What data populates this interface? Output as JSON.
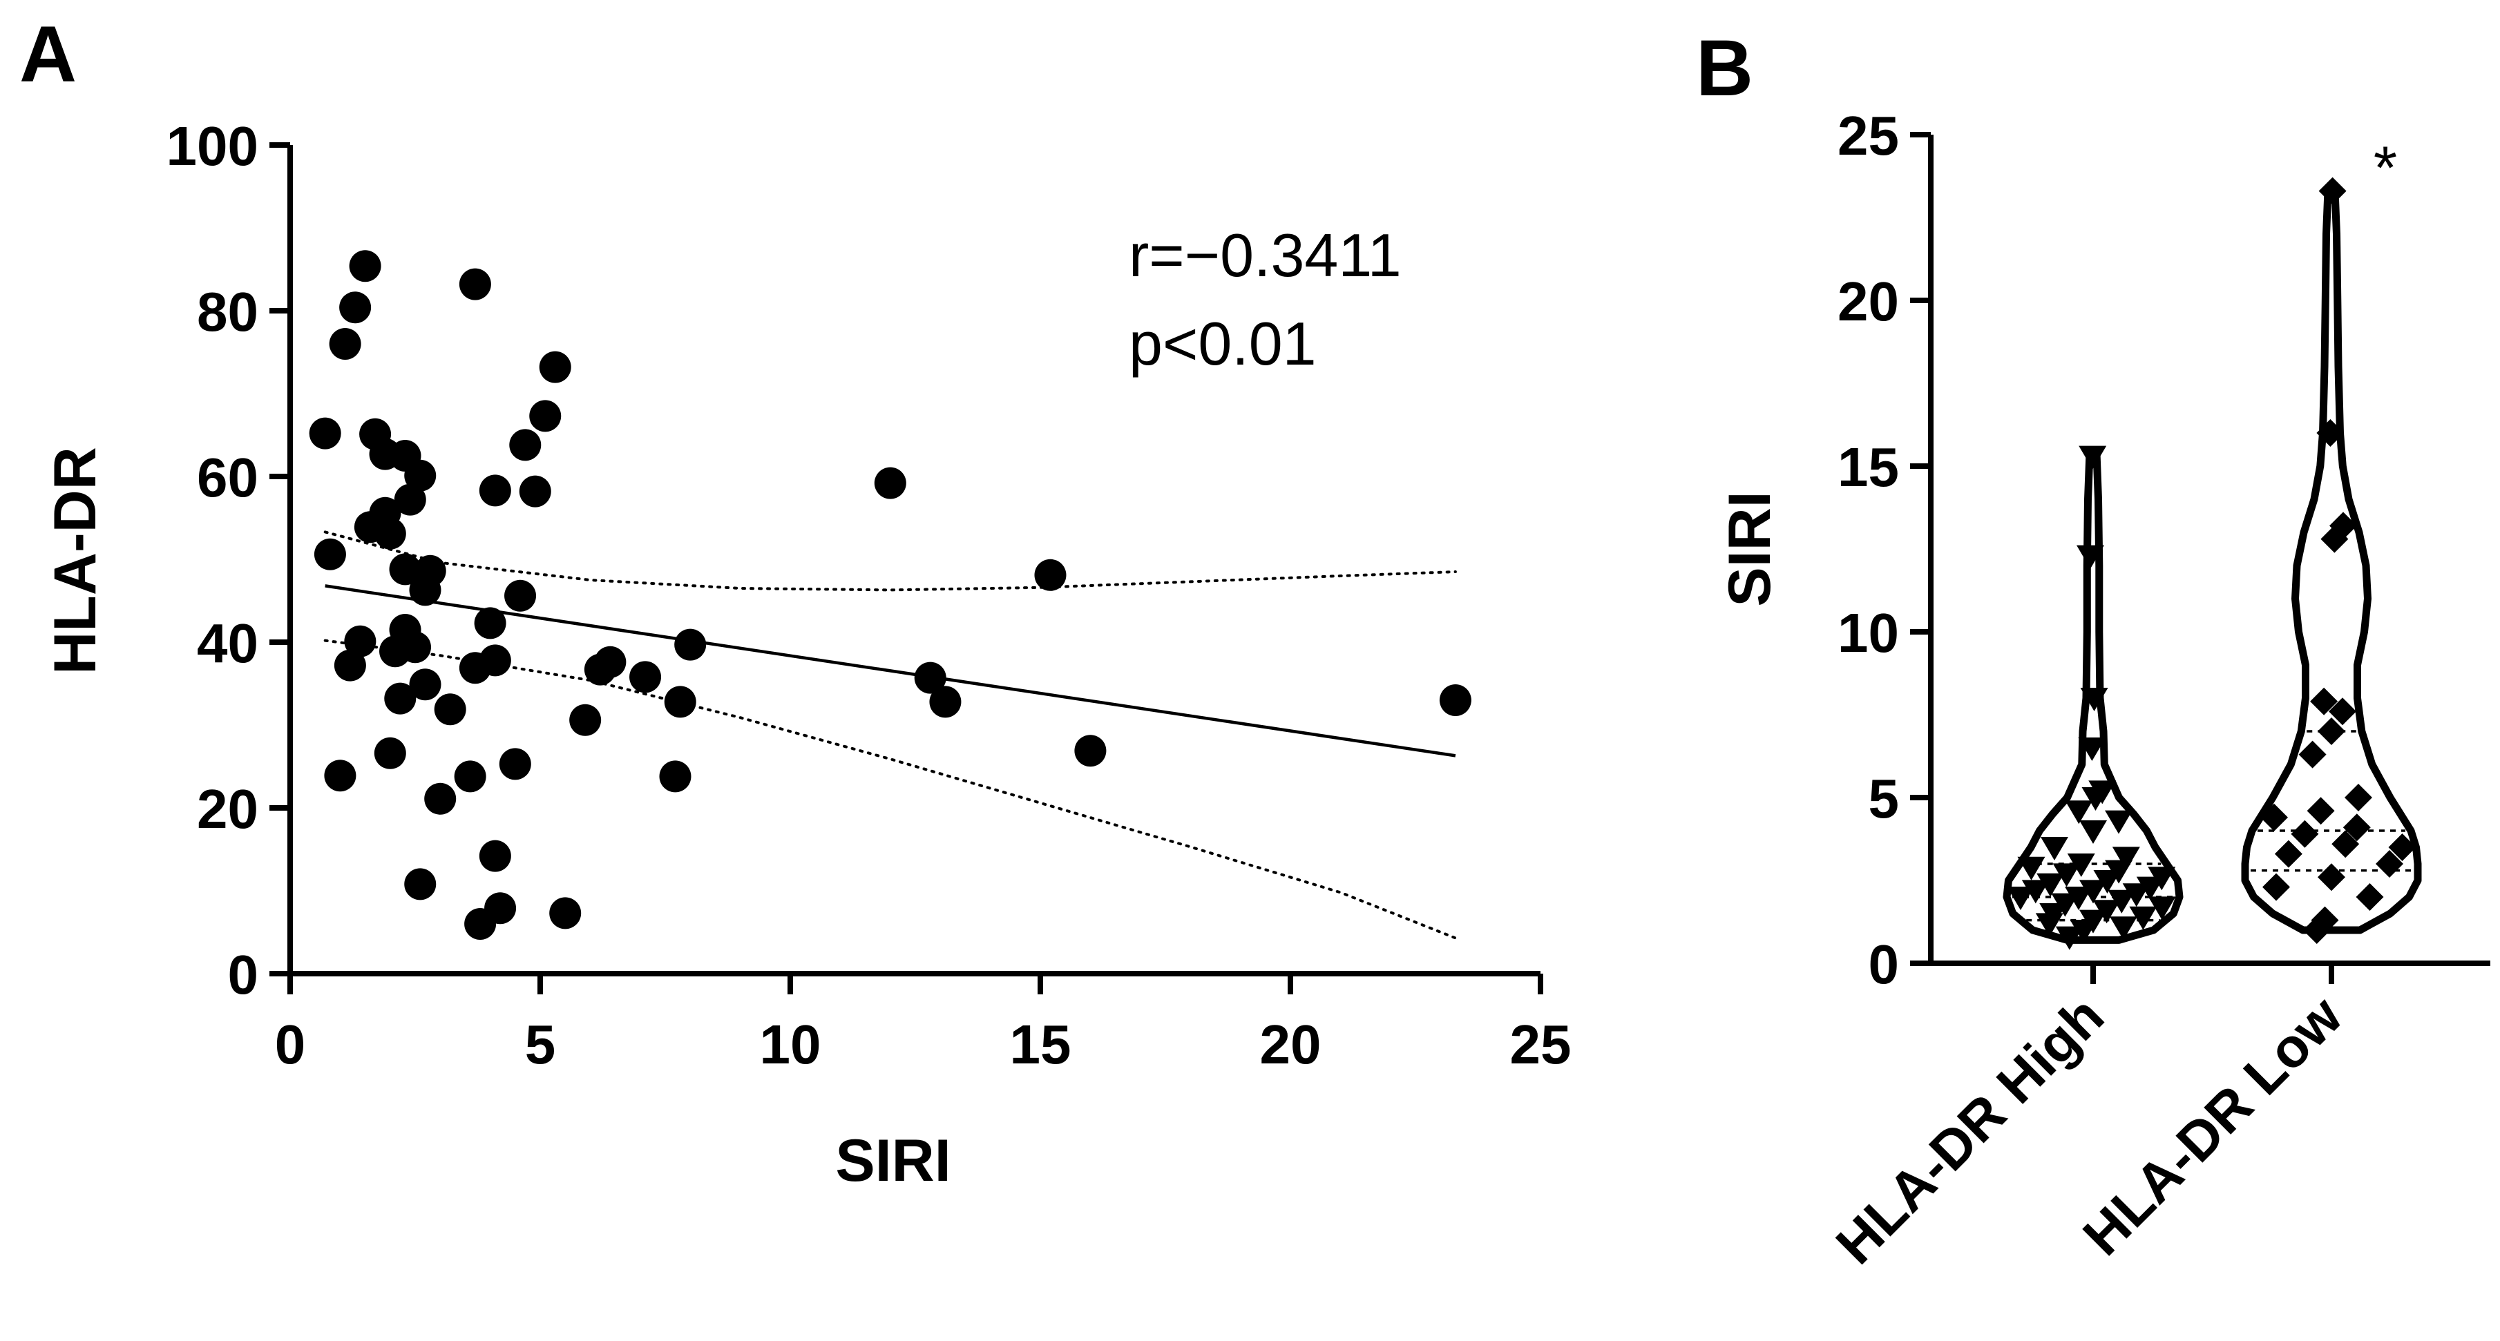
{
  "chart_data": [
    {
      "panel": "A",
      "type": "scatter",
      "xlabel": "SIRI",
      "ylabel": "HLA-DR",
      "xlim": [
        0,
        25
      ],
      "ylim": [
        0,
        100
      ],
      "xticks": [
        "0",
        "5",
        "10",
        "15",
        "20",
        "25"
      ],
      "yticks": [
        "0",
        "20",
        "40",
        "60",
        "80",
        "100"
      ],
      "annotation_r": "r=−0.3411",
      "annotation_p": "p<0.01",
      "points": [
        [
          0.7,
          65.2
        ],
        [
          0.8,
          50.6
        ],
        [
          1.0,
          23.9
        ],
        [
          1.1,
          76.0
        ],
        [
          1.2,
          37.2
        ],
        [
          1.3,
          80.4
        ],
        [
          1.4,
          40.1
        ],
        [
          1.5,
          85.4
        ],
        [
          1.6,
          53.9
        ],
        [
          1.7,
          65.1
        ],
        [
          1.9,
          62.7
        ],
        [
          1.9,
          55.6
        ],
        [
          2.0,
          26.6
        ],
        [
          2.0,
          53.1
        ],
        [
          2.1,
          38.9
        ],
        [
          2.2,
          33.2
        ],
        [
          2.3,
          62.5
        ],
        [
          2.3,
          48.8
        ],
        [
          2.3,
          41.5
        ],
        [
          2.4,
          57.2
        ],
        [
          2.5,
          39.4
        ],
        [
          2.6,
          60.1
        ],
        [
          2.6,
          10.8
        ],
        [
          2.7,
          46.3
        ],
        [
          2.7,
          34.9
        ],
        [
          2.8,
          48.6
        ],
        [
          3.0,
          21.1
        ],
        [
          3.2,
          31.9
        ],
        [
          3.6,
          23.8
        ],
        [
          3.7,
          36.9
        ],
        [
          3.7,
          83.2
        ],
        [
          3.8,
          6.0
        ],
        [
          4.0,
          42.3
        ],
        [
          4.1,
          58.3
        ],
        [
          4.1,
          37.8
        ],
        [
          4.1,
          14.2
        ],
        [
          4.2,
          7.9
        ],
        [
          4.5,
          25.3
        ],
        [
          4.6,
          45.6
        ],
        [
          4.7,
          63.8
        ],
        [
          4.9,
          58.2
        ],
        [
          5.1,
          67.3
        ],
        [
          5.3,
          73.2
        ],
        [
          5.5,
          7.3
        ],
        [
          5.9,
          30.6
        ],
        [
          6.2,
          36.7
        ],
        [
          6.4,
          37.6
        ],
        [
          7.1,
          35.8
        ],
        [
          7.7,
          23.8
        ],
        [
          7.8,
          32.8
        ],
        [
          8.0,
          39.7
        ],
        [
          12.0,
          59.2
        ],
        [
          12.8,
          35.7
        ],
        [
          13.1,
          32.8
        ],
        [
          15.2,
          48.1
        ],
        [
          16.0,
          26.9
        ],
        [
          23.3,
          33.0
        ]
      ],
      "regression": {
        "x": [
          0.7,
          23.3
        ],
        "y": [
          46.8,
          26.3
        ]
      },
      "ci_upper": {
        "x": [
          0.7,
          3.0,
          6.0,
          9.0,
          12.0,
          15.0,
          18.0,
          21.0,
          23.3
        ],
        "y": [
          53.3,
          49.6,
          47.5,
          46.5,
          46.3,
          46.6,
          47.3,
          48.0,
          48.5
        ]
      },
      "ci_lower": {
        "x": [
          0.7,
          3.0,
          6.0,
          9.0,
          12.0,
          15.0,
          18.0,
          21.0,
          23.3
        ],
        "y": [
          40.2,
          38.4,
          35.4,
          30.9,
          25.9,
          20.6,
          15.3,
          9.8,
          4.3
        ]
      }
    },
    {
      "panel": "B",
      "type": "violin",
      "ylabel": "SIRI",
      "ylim": [
        0,
        25
      ],
      "yticks": [
        "0",
        "5",
        "10",
        "15",
        "20",
        "25"
      ],
      "categories": [
        "HLA-DR High",
        "HLA-DR Low"
      ],
      "significance": "*",
      "series": [
        {
          "name": "HLA-DR High",
          "marker": "triangle-down",
          "median": 2.0,
          "q1": 1.3,
          "q3": 3.0,
          "density": {
            "y": [
              0.7,
              1.0,
              1.5,
              2.0,
              2.5,
              3.0,
              3.5,
              4.0,
              4.5,
              5.0,
              6.0,
              7.0,
              8.0,
              10.0,
              12.0,
              14.0,
              15.4
            ],
            "w": [
              0.3,
              0.7,
              0.93,
              1.0,
              0.98,
              0.85,
              0.72,
              0.62,
              0.47,
              0.3,
              0.13,
              0.12,
              0.08,
              0.07,
              0.07,
              0.06,
              0.04
            ]
          },
          "values": [
            0.8,
            1.0,
            1.1,
            1.2,
            1.3,
            1.4,
            1.5,
            1.6,
            1.7,
            1.8,
            1.9,
            2.0,
            2.0,
            2.1,
            2.2,
            2.2,
            2.3,
            2.4,
            2.5,
            2.6,
            2.7,
            2.8,
            2.9,
            3.0,
            3.2,
            3.5,
            4.0,
            4.3,
            4.6,
            5.0,
            5.2,
            6.5,
            8.0,
            12.3,
            15.3
          ]
        },
        {
          "name": "HLA-DR Low",
          "marker": "diamond",
          "median": 4.0,
          "q1": 2.8,
          "q3": 7.0,
          "density": {
            "y": [
              1.0,
              1.5,
              2.0,
              2.5,
              3.0,
              3.5,
              4.0,
              5.0,
              6.0,
              7.0,
              8.0,
              9.0,
              10.0,
              11.0,
              12.0,
              13.0,
              14.0,
              15.0,
              16.0,
              18.0,
              20.0,
              22.0,
              23.3
            ],
            "w": [
              0.33,
              0.68,
              0.9,
              1.0,
              1.0,
              0.98,
              0.92,
              0.68,
              0.47,
              0.35,
              0.3,
              0.3,
              0.38,
              0.42,
              0.4,
              0.32,
              0.2,
              0.13,
              0.1,
              0.08,
              0.07,
              0.06,
              0.04
            ]
          },
          "values": [
            1.0,
            1.3,
            2.0,
            2.3,
            2.6,
            3.0,
            3.3,
            3.6,
            3.5,
            3.9,
            4.1,
            4.4,
            4.6,
            5.0,
            6.3,
            7.0,
            7.6,
            7.9,
            12.8,
            13.2,
            16.0,
            23.3
          ]
        }
      ]
    }
  ],
  "labels": {
    "panel_a": "A",
    "panel_b": "B"
  },
  "colors": {
    "ink": "#000000",
    "background": "#ffffff"
  }
}
